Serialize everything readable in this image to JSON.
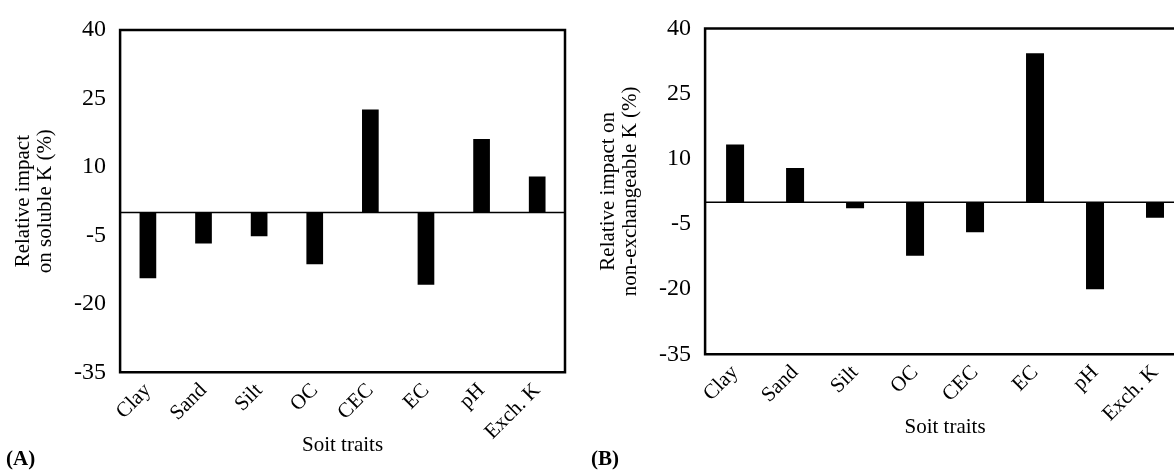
{
  "chart_data": [
    {
      "type": "bar",
      "categories": [
        "Clay",
        "Sand",
        "Silt",
        "OC",
        "CEC",
        "EC",
        "pH",
        "Exch. K"
      ],
      "series": [
        {
          "color": "#000000",
          "values": [
            -14.4,
            -6.8,
            -5.2,
            -11.3,
            22.6,
            -15.8,
            16.1,
            7.9
          ]
        }
      ],
      "ylim": [
        -35,
        40
      ],
      "yticks": [
        -35,
        -20,
        -5,
        10,
        25,
        40
      ],
      "grid": false,
      "legend": false,
      "xlabel": "Soit traits",
      "ylabel": "Relative impact on soluble K (%)",
      "ref_lines": [
        {
          "axis": "y",
          "value": 0,
          "color": "#000000"
        }
      ],
      "annotations": [
        "(A)"
      ]
    },
    {
      "type": "bar",
      "categories": [
        "Clay",
        "Sand",
        "Silt",
        "OC",
        "CEC",
        "EC",
        "pH",
        "Exch. K"
      ],
      "series": [
        {
          "color": "#000000",
          "values": [
            13.3,
            7.9,
            -1.4,
            -12.3,
            -6.9,
            34.3,
            -20.0,
            -3.6
          ]
        }
      ],
      "ylim": [
        -35,
        40
      ],
      "yticks": [
        -35,
        -20,
        -5,
        10,
        25,
        40
      ],
      "grid": false,
      "legend": false,
      "xlabel": "Soit traits",
      "ylabel": "Relative impact on non-exchangeable K (%)",
      "ref_lines": [
        {
          "axis": "y",
          "value": 0,
          "color": "#000000"
        }
      ],
      "annotations": [
        "(B)"
      ]
    }
  ]
}
